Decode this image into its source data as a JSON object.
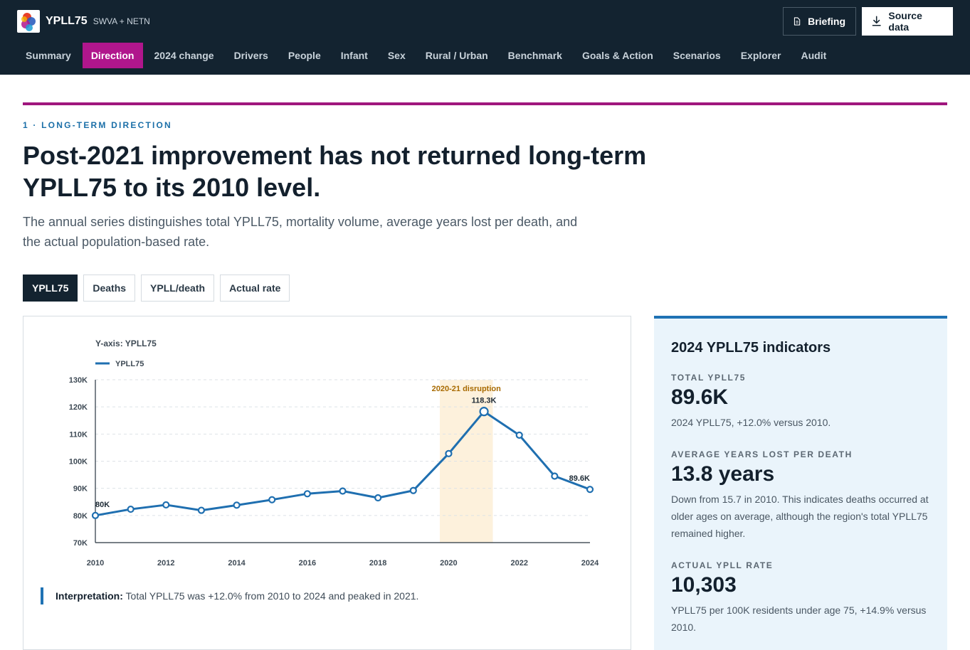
{
  "header": {
    "app_name": "YPLL75",
    "app_sub": "SWVA + NETN",
    "briefing_label": "Briefing",
    "source_label": "Source data"
  },
  "nav": [
    {
      "label": "Summary",
      "active": false
    },
    {
      "label": "Direction",
      "active": true
    },
    {
      "label": "2024 change",
      "active": false
    },
    {
      "label": "Drivers",
      "active": false
    },
    {
      "label": "People",
      "active": false
    },
    {
      "label": "Infant",
      "active": false
    },
    {
      "label": "Sex",
      "active": false
    },
    {
      "label": "Rural / Urban",
      "active": false
    },
    {
      "label": "Benchmark",
      "active": false
    },
    {
      "label": "Goals & Action",
      "active": false
    },
    {
      "label": "Scenarios",
      "active": false
    },
    {
      "label": "Explorer",
      "active": false
    },
    {
      "label": "Audit",
      "active": false
    }
  ],
  "section": {
    "eyebrow": "1 · LONG-TERM DIRECTION",
    "headline": "Post-2021 improvement has not returned long-term YPLL75 to its 2010 level.",
    "lede": "The annual series distinguishes total YPLL75, mortality volume, average years lost per death, and the actual population-based rate."
  },
  "tabs": [
    {
      "label": "YPLL75",
      "active": true
    },
    {
      "label": "Deaths",
      "active": false
    },
    {
      "label": "YPLL/death",
      "active": false
    },
    {
      "label": "Actual rate",
      "active": false
    }
  ],
  "chart_data": {
    "type": "line",
    "axis_title": "Y-axis: YPLL75",
    "legend": "YPLL75",
    "x": [
      2010,
      2011,
      2012,
      2013,
      2014,
      2015,
      2016,
      2017,
      2018,
      2019,
      2020,
      2021,
      2022,
      2023,
      2024
    ],
    "series": [
      {
        "name": "YPLL75",
        "values": [
          80000,
          82300,
          83900,
          81900,
          83800,
          85800,
          88000,
          89000,
          86500,
          89200,
          102800,
          118300,
          109600,
          94500,
          89600
        ]
      }
    ],
    "xticks": [
      2010,
      2012,
      2014,
      2016,
      2018,
      2020,
      2022,
      2024
    ],
    "xtick_labels": [
      "2010",
      "2012",
      "2014",
      "2016",
      "2018",
      "2020",
      "2022",
      "2024"
    ],
    "yticks": [
      70000,
      80000,
      90000,
      100000,
      110000,
      120000,
      130000
    ],
    "ytick_labels": [
      "70K",
      "80K",
      "90K",
      "100K",
      "110K",
      "120K",
      "130K"
    ],
    "ylim": [
      70000,
      130000
    ],
    "xlim": [
      2010,
      2024
    ],
    "grid": true,
    "legend_position": "top-left",
    "highlight": {
      "label": "2020-21 disruption",
      "from": 2019.75,
      "to": 2021.25,
      "color": "#fdf1dc"
    },
    "annotations": [
      {
        "x": 2010,
        "y": 80000,
        "label": "80K"
      },
      {
        "x": 2021,
        "y": 118300,
        "label": "118.3K"
      },
      {
        "x": 2024,
        "y": 89600,
        "label": "89.6K"
      }
    ],
    "line_color": "#1f6fb0"
  },
  "interpretation": {
    "label": "Interpretation:",
    "text": "Total YPLL75 was +12.0% from 2010 to 2024 and peaked in 2021."
  },
  "indicators": {
    "title": "2024 YPLL75 indicators",
    "items": [
      {
        "label": "TOTAL YPLL75",
        "value": "89.6K",
        "note": "2024 YPLL75, +12.0% versus 2010."
      },
      {
        "label": "AVERAGE YEARS LOST PER DEATH",
        "value": "13.8 years",
        "note": "Down from 15.7 in 2010. This indicates deaths occurred at older ages on average, although the region's total YPLL75 remained higher."
      },
      {
        "label": "ACTUAL YPLL RATE",
        "value": "10,303",
        "note": "YPLL75 per 100K residents under age 75, +14.9% versus 2010."
      }
    ]
  },
  "colors": {
    "header_bg": "#132330",
    "accent_magenta": "#b0168c",
    "accent_blue": "#1f72b4",
    "panel_bg": "#eaf4fb"
  },
  "icons": {
    "briefing": "document-icon",
    "source": "download-icon"
  }
}
